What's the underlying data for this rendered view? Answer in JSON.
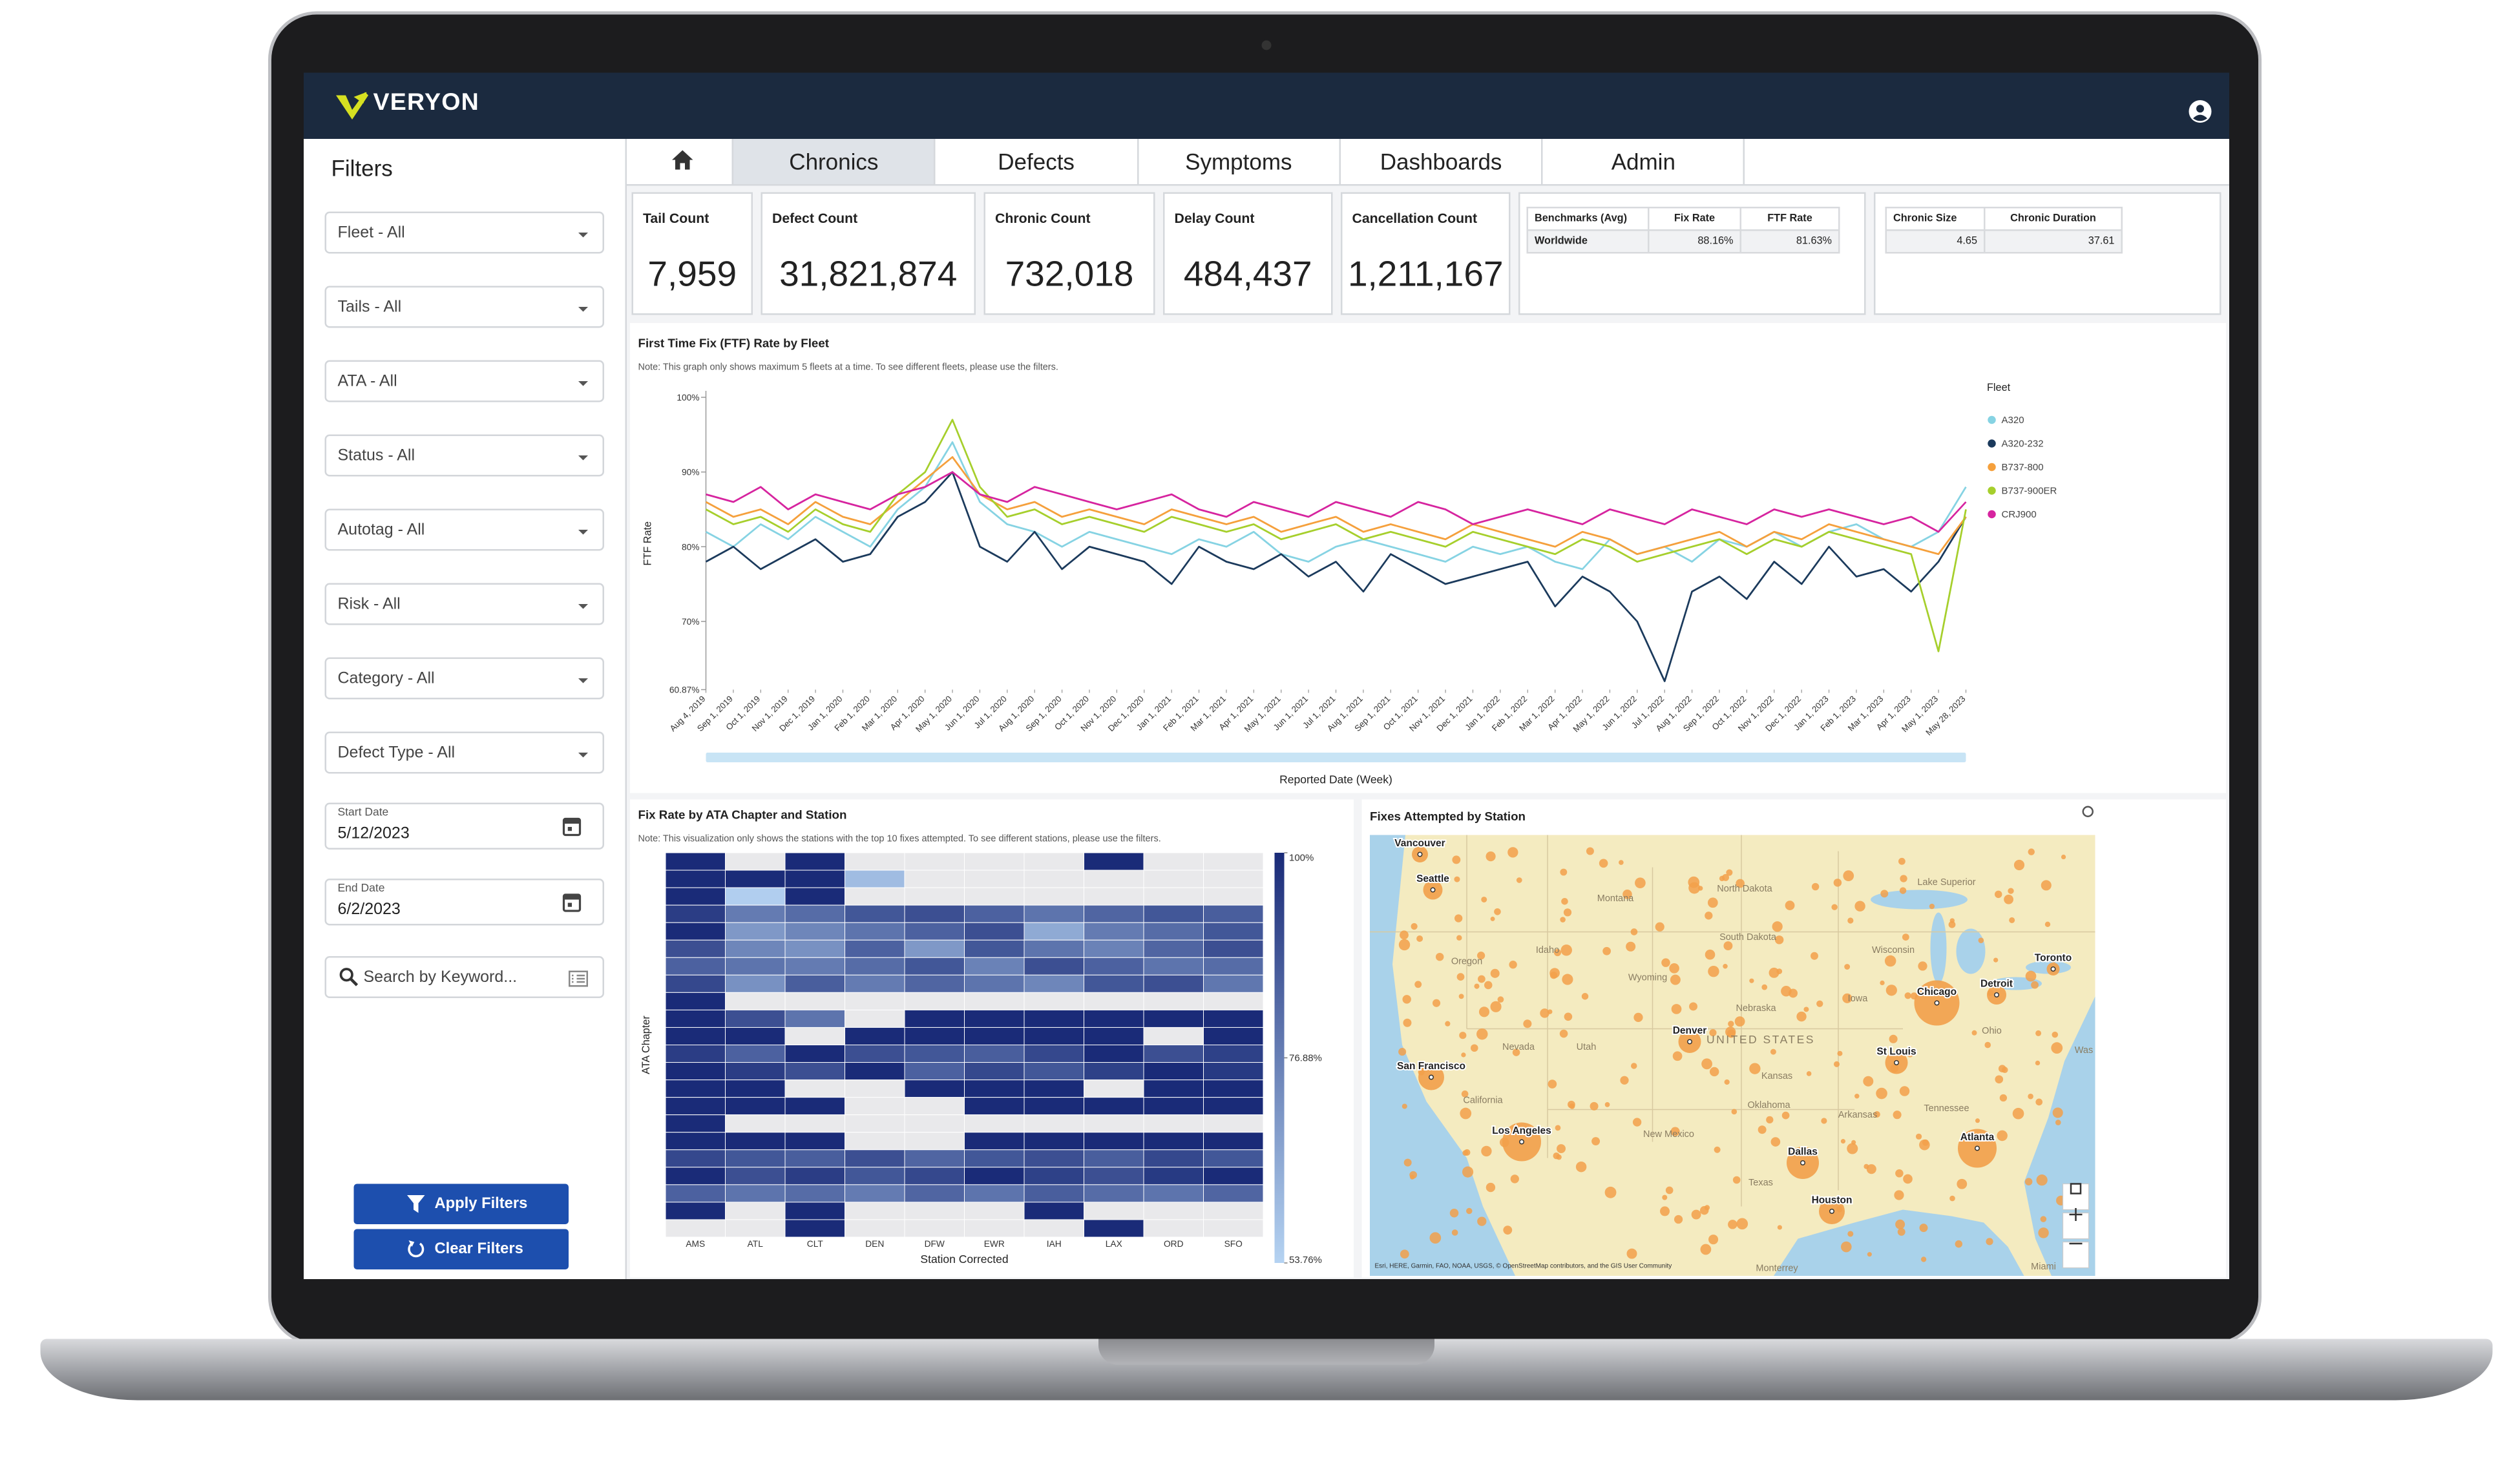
{
  "header": {
    "logo": "VERYON"
  },
  "filters": {
    "title": "Filters",
    "dropdowns": [
      "Fleet - All",
      "Tails - All",
      "ATA - All",
      "Status - All",
      "Autotag - All",
      "Risk - All",
      "Category - All",
      "Defect Type - All"
    ],
    "start_date": {
      "label": "Start Date",
      "value": "5/12/2023"
    },
    "end_date": {
      "label": "End Date",
      "value": "6/2/2023"
    },
    "search": "Search by Keyword...",
    "apply": "Apply Filters",
    "clear": "Clear Filters"
  },
  "tabs": [
    "Chronics",
    "Defects",
    "Symptoms",
    "Dashboards",
    "Admin"
  ],
  "kpis": [
    {
      "label": "Tail Count",
      "value": "7,959"
    },
    {
      "label": "Defect Count",
      "value": "31,821,874"
    },
    {
      "label": "Chronic Count",
      "value": "732,018"
    },
    {
      "label": "Delay Count",
      "value": "484,437"
    },
    {
      "label": "Cancellation Count",
      "value": "1,211,167"
    }
  ],
  "benchmarks": {
    "headers": [
      "Benchmarks (Avg)",
      "Fix Rate",
      "FTF Rate"
    ],
    "rows": [
      [
        "Worldwide",
        "88.16%",
        "81.63%"
      ]
    ]
  },
  "chronic": {
    "headers": [
      "Chronic Size",
      "Chronic Duration"
    ],
    "rows": [
      [
        "4.65",
        "37.61"
      ]
    ]
  },
  "chart_data": [
    {
      "type": "line",
      "title": "First Time Fix (FTF) Rate by Fleet",
      "note": "Note: This graph only shows maximum 5 fleets at a time.  To see different fleets, please use the filters.",
      "xlabel": "Reported Date (Week)",
      "ylabel": "FTF Rate",
      "legend_title": "Fleet",
      "legend": "right",
      "grid": false,
      "categories": [
        "Aug 4, 2019",
        "Sep 1, 2019",
        "Oct 1, 2019",
        "Nov 1, 2019",
        "Dec 1, 2019",
        "Jan 1, 2020",
        "Feb 1, 2020",
        "Mar 1, 2020",
        "Apr 1, 2020",
        "May 1, 2020",
        "Jun 1, 2020",
        "Jul 1, 2020",
        "Aug 1, 2020",
        "Sep 1, 2020",
        "Oct 1, 2020",
        "Nov 1, 2020",
        "Dec 1, 2020",
        "Jan 1, 2021",
        "Feb 1, 2021",
        "Mar 1, 2021",
        "Apr 1, 2021",
        "May 1, 2021",
        "Jun 1, 2021",
        "Jul 1, 2021",
        "Aug 1, 2021",
        "Sep 1, 2021",
        "Oct 1, 2021",
        "Nov 1, 2021",
        "Dec 1, 2021",
        "Jan 1, 2022",
        "Feb 1, 2022",
        "Mar 1, 2022",
        "Apr 1, 2022",
        "May 1, 2022",
        "Jun 1, 2022",
        "Jul 1, 2022",
        "Aug 1, 2022",
        "Sep 1, 2022",
        "Oct 1, 2022",
        "Nov 1, 2022",
        "Dec 1, 2022",
        "Jan 1, 2023",
        "Feb 1, 2023",
        "Mar 1, 2023",
        "Apr 1, 2023",
        "May 1, 2023",
        "May 28, 2023"
      ],
      "ylim": [
        60.87,
        100
      ],
      "yticks": [
        {
          "value": 60.87,
          "label": "60.87%"
        },
        {
          "value": 70,
          "label": "70%"
        },
        {
          "value": 80,
          "label": "80%"
        },
        {
          "value": 90,
          "label": "90%"
        },
        {
          "value": 100,
          "label": "100%"
        }
      ],
      "series": [
        {
          "name": "A320",
          "color": "#86d3e3",
          "values": [
            82,
            80,
            83,
            81,
            84,
            82,
            80,
            85,
            88,
            94,
            86,
            83,
            82,
            80,
            82,
            81,
            80,
            79,
            81,
            80,
            82,
            79,
            78,
            80,
            81,
            80,
            79,
            78,
            80,
            79,
            80,
            78,
            77,
            81,
            79,
            80,
            78,
            81,
            80,
            82,
            80,
            82,
            83,
            81,
            80,
            82,
            88
          ]
        },
        {
          "name": "A320-232",
          "color": "#1b3a5c",
          "values": [
            78,
            80,
            77,
            79,
            81,
            78,
            79,
            84,
            86,
            90,
            80,
            78,
            82,
            77,
            80,
            79,
            78,
            75,
            80,
            78,
            77,
            79,
            76,
            78,
            74,
            79,
            77,
            75,
            76,
            77,
            78,
            72,
            76,
            74,
            70,
            62,
            74,
            76,
            73,
            78,
            75,
            80,
            76,
            77,
            74,
            78,
            84
          ]
        },
        {
          "name": "B737-800",
          "color": "#f5a03c",
          "values": [
            86,
            84,
            85,
            83,
            86,
            84,
            83,
            86,
            89,
            92,
            87,
            85,
            86,
            84,
            85,
            84,
            83,
            85,
            84,
            83,
            84,
            82,
            83,
            84,
            82,
            83,
            82,
            81,
            83,
            82,
            81,
            80,
            82,
            81,
            79,
            80,
            81,
            82,
            80,
            82,
            81,
            83,
            82,
            81,
            80,
            79,
            84
          ]
        },
        {
          "name": "B737-900ER",
          "color": "#a6cf2c",
          "values": [
            85,
            83,
            84,
            82,
            85,
            83,
            82,
            87,
            90,
            97,
            88,
            84,
            85,
            83,
            84,
            83,
            82,
            84,
            83,
            82,
            83,
            81,
            82,
            83,
            81,
            82,
            81,
            80,
            82,
            81,
            80,
            79,
            81,
            80,
            78,
            79,
            80,
            81,
            79,
            81,
            80,
            82,
            81,
            80,
            79,
            66,
            85
          ]
        },
        {
          "name": "CRJ900",
          "color": "#d6249f",
          "values": [
            87,
            86,
            88,
            85,
            87,
            86,
            85,
            87,
            88,
            90,
            87,
            86,
            88,
            87,
            86,
            85,
            86,
            87,
            85,
            84,
            86,
            85,
            84,
            86,
            85,
            84,
            86,
            85,
            83,
            84,
            85,
            84,
            83,
            85,
            84,
            83,
            85,
            84,
            83,
            85,
            84,
            85,
            84,
            83,
            84,
            82,
            86
          ]
        }
      ]
    },
    {
      "type": "heatmap",
      "title": "Fix Rate by ATA Chapter and Station",
      "note": "Note: This visualization only shows the stations with the top 10 fixes attempted.  To see different stations, please use the filters.",
      "xlabel": "Station Corrected",
      "ylabel": "ATA Chapter",
      "categories": [
        "AMS",
        "ATL",
        "CLT",
        "DEN",
        "DFW",
        "EWR",
        "IAH",
        "LAX",
        "ORD",
        "SFO"
      ],
      "colors": [
        "#b5d3f2",
        "#1a2b78"
      ],
      "missing_color": "#e9e9eb",
      "zlim": [
        53.76,
        100
      ],
      "zticks": [
        {
          "value": 53.76,
          "label": "53.76%"
        },
        {
          "value": 76.88,
          "label": "76.88%"
        },
        {
          "value": 100,
          "label": "100%"
        }
      ],
      "values": [
        [
          100,
          null,
          100,
          null,
          null,
          null,
          null,
          100,
          null,
          null
        ],
        [
          100,
          100,
          100,
          60,
          null,
          null,
          null,
          null,
          null,
          null
        ],
        [
          100,
          55,
          100,
          null,
          null,
          null,
          null,
          null,
          null,
          null
        ],
        [
          95,
          78,
          82,
          88,
          90,
          85,
          80,
          84,
          88,
          86
        ],
        [
          100,
          70,
          75,
          80,
          85,
          90,
          65,
          78,
          82,
          88
        ],
        [
          90,
          75,
          72,
          85,
          70,
          88,
          80,
          76,
          84,
          90
        ],
        [
          85,
          80,
          78,
          82,
          88,
          76,
          90,
          85,
          80,
          82
        ],
        [
          92,
          72,
          86,
          78,
          84,
          80,
          75,
          88,
          90,
          79
        ],
        [
          100,
          null,
          null,
          null,
          null,
          null,
          null,
          null,
          null,
          null
        ],
        [
          100,
          90,
          80,
          null,
          100,
          100,
          100,
          100,
          100,
          100
        ],
        [
          100,
          100,
          null,
          100,
          100,
          100,
          100,
          100,
          null,
          100
        ],
        [
          95,
          85,
          100,
          90,
          88,
          86,
          92,
          100,
          90,
          94
        ],
        [
          100,
          95,
          90,
          100,
          85,
          92,
          88,
          94,
          100,
          96
        ],
        [
          100,
          100,
          null,
          null,
          100,
          100,
          100,
          null,
          100,
          100
        ],
        [
          100,
          100,
          100,
          null,
          null,
          100,
          100,
          100,
          100,
          100
        ],
        [
          100,
          null,
          null,
          null,
          null,
          null,
          null,
          null,
          null,
          null
        ],
        [
          100,
          100,
          100,
          null,
          null,
          100,
          100,
          100,
          100,
          100
        ],
        [
          92,
          88,
          86,
          90,
          84,
          88,
          90,
          86,
          92,
          88
        ],
        [
          100,
          90,
          95,
          88,
          92,
          100,
          94,
          90,
          96,
          100
        ],
        [
          85,
          80,
          82,
          78,
          84,
          80,
          86,
          82,
          80,
          84
        ],
        [
          100,
          null,
          100,
          null,
          null,
          null,
          100,
          null,
          null,
          null
        ],
        [
          null,
          null,
          100,
          null,
          null,
          null,
          null,
          100,
          null,
          null
        ]
      ]
    }
  ],
  "map": {
    "title": "Fixes Attempted by Station",
    "cities": [
      "Vancouver",
      "Seattle",
      "Toronto",
      "Detroit",
      "Chicago",
      "Denver",
      "San Francisco",
      "St Louis",
      "Los Angeles",
      "Dallas",
      "Atlanta",
      "Houston"
    ],
    "regions": [
      "Montana",
      "North Dakota",
      "South Dakota",
      "Lake Superior",
      "Oregon",
      "Idaho",
      "Wyoming",
      "Wisconsin",
      "Nebraska",
      "Iowa",
      "Ohio",
      "UNITED STATES",
      "Nevada",
      "Utah",
      "California",
      "Kansas",
      "Oklahoma",
      "Arkansas",
      "Tennessee",
      "New Mexico",
      "Texas",
      "Monterrey",
      "Miami",
      "Was"
    ],
    "attribution": "Esri, HERE, Garmin, FAO, NOAA, USGS, © OpenStreetMap contributors, and the GIS User Community"
  }
}
